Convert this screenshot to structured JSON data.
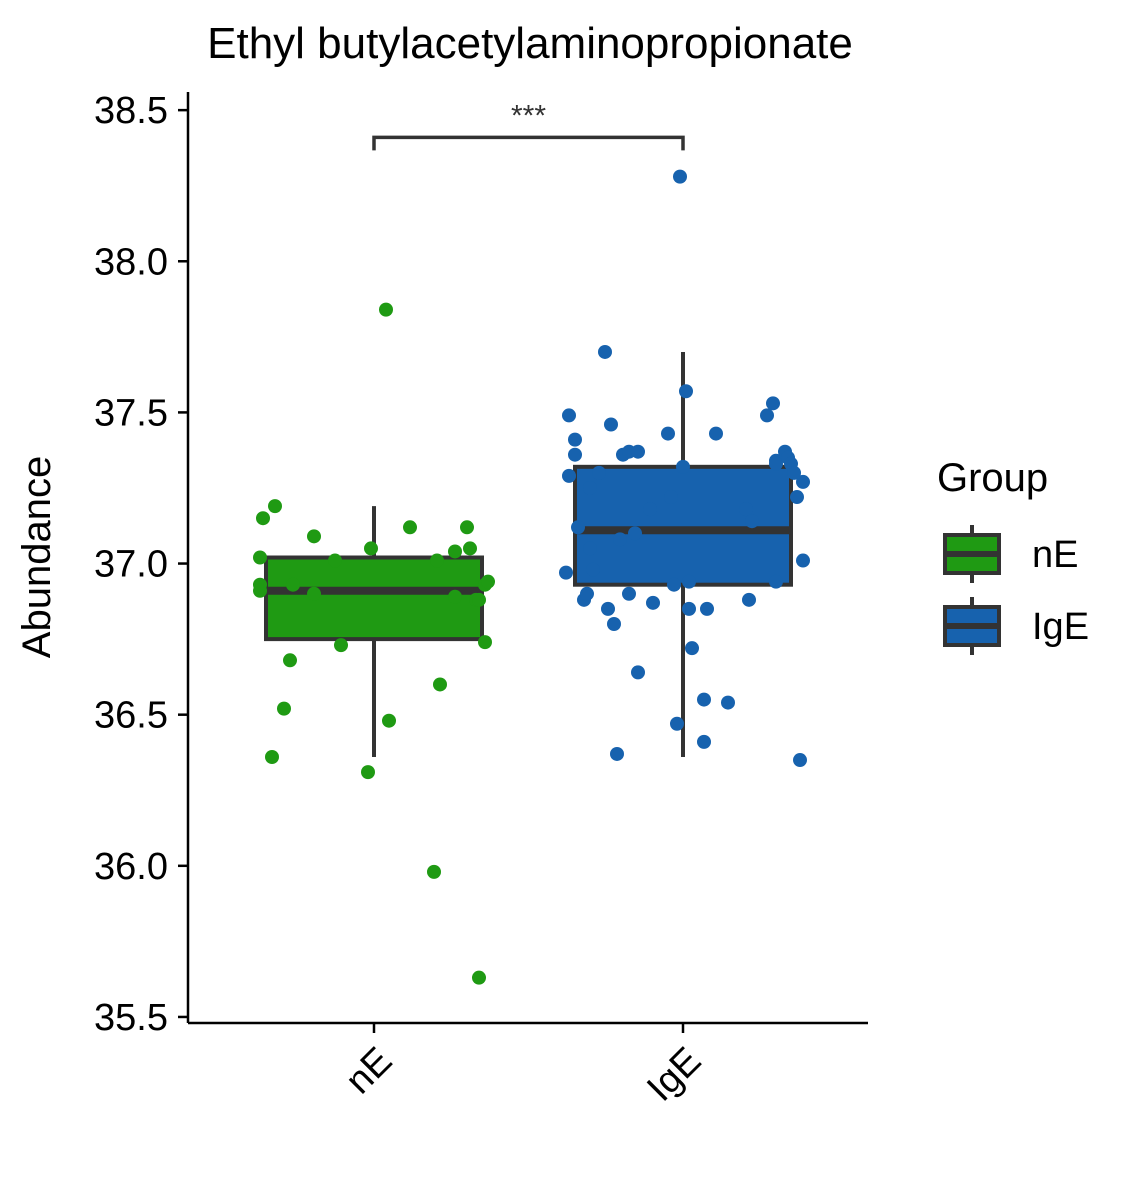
{
  "chart_data": {
    "type": "boxplot",
    "title": "Ethyl butylacetylaminopropionate",
    "xlabel": "",
    "ylabel": "Abundance",
    "ylim": [
      35.48,
      38.56
    ],
    "yticks": [
      "35.5",
      "36.0",
      "36.5",
      "37.0",
      "37.5",
      "38.0",
      "38.5"
    ],
    "categories": [
      "nE",
      "IgE"
    ],
    "legend": {
      "title": "Group",
      "position": "right",
      "entries": [
        "nE",
        "IgE"
      ]
    },
    "significance": {
      "between": [
        "nE",
        "IgE"
      ],
      "label": "***"
    },
    "colors": {
      "nE": "#1f9a13",
      "IgE": "#1762ae",
      "outline": "#333333"
    },
    "groups": [
      {
        "name": "nE",
        "box": {
          "q1": 36.75,
          "median": 36.91,
          "q3": 37.02,
          "whisker_low": 36.36,
          "whisker_high": 37.19
        },
        "points": [
          [
            -0.38,
            36.93
          ],
          [
            -0.38,
            36.91
          ],
          [
            -0.38,
            37.02
          ],
          [
            -0.37,
            37.15
          ],
          [
            -0.34,
            36.36
          ],
          [
            -0.33,
            37.19
          ],
          [
            -0.3,
            36.52
          ],
          [
            -0.28,
            36.68
          ],
          [
            -0.27,
            36.93
          ],
          [
            -0.2,
            36.9
          ],
          [
            -0.2,
            37.09
          ],
          [
            -0.13,
            37.01
          ],
          [
            -0.11,
            36.73
          ],
          [
            -0.02,
            36.31
          ],
          [
            -0.01,
            37.05
          ],
          [
            0.04,
            37.84
          ],
          [
            0.05,
            36.48
          ],
          [
            0.12,
            37.12
          ],
          [
            0.2,
            35.98
          ],
          [
            0.21,
            37.01
          ],
          [
            0.22,
            36.6
          ],
          [
            0.27,
            37.04
          ],
          [
            0.27,
            36.89
          ],
          [
            0.31,
            37.12
          ],
          [
            0.32,
            37.05
          ],
          [
            0.34,
            36.88
          ],
          [
            0.35,
            35.63
          ],
          [
            0.35,
            36.88
          ],
          [
            0.37,
            36.74
          ],
          [
            0.37,
            36.93
          ],
          [
            0.38,
            36.94
          ]
        ]
      },
      {
        "name": "IgE",
        "box": {
          "q1": 36.93,
          "median": 37.11,
          "q3": 37.32,
          "whisker_low": 36.36,
          "whisker_high": 37.7
        },
        "points": [
          [
            -0.39,
            36.97
          ],
          [
            -0.38,
            37.49
          ],
          [
            -0.38,
            37.29
          ],
          [
            -0.36,
            37.41
          ],
          [
            -0.36,
            37.36
          ],
          [
            -0.35,
            37.12
          ],
          [
            -0.33,
            36.88
          ],
          [
            -0.32,
            36.9
          ],
          [
            -0.31,
            37.25
          ],
          [
            -0.31,
            37.05
          ],
          [
            -0.3,
            36.98
          ],
          [
            -0.28,
            37.3
          ],
          [
            -0.26,
            37.7
          ],
          [
            -0.25,
            36.85
          ],
          [
            -0.24,
            37.46
          ],
          [
            -0.23,
            36.8
          ],
          [
            -0.22,
            36.37
          ],
          [
            -0.21,
            37.08
          ],
          [
            -0.2,
            37.36
          ],
          [
            -0.18,
            36.9
          ],
          [
            -0.18,
            37.37
          ],
          [
            -0.16,
            37.1
          ],
          [
            -0.15,
            37.37
          ],
          [
            -0.15,
            36.64
          ],
          [
            -0.11,
            37.18
          ],
          [
            -0.1,
            36.87
          ],
          [
            -0.05,
            37.43
          ],
          [
            -0.04,
            37.22
          ],
          [
            -0.03,
            36.93
          ],
          [
            -0.02,
            36.47
          ],
          [
            -0.01,
            38.28
          ],
          [
            0.0,
            37.32
          ],
          [
            0.01,
            37.57
          ],
          [
            0.02,
            36.85
          ],
          [
            0.02,
            36.94
          ],
          [
            0.03,
            36.72
          ],
          [
            0.07,
            36.55
          ],
          [
            0.07,
            36.41
          ],
          [
            0.08,
            36.85
          ],
          [
            0.11,
            37.43
          ],
          [
            0.15,
            36.54
          ],
          [
            0.22,
            36.88
          ],
          [
            0.21,
            37.18
          ],
          [
            0.23,
            37.14
          ],
          [
            0.28,
            37.49
          ],
          [
            0.3,
            37.53
          ],
          [
            0.31,
            37.34
          ],
          [
            0.31,
            37.33
          ],
          [
            0.31,
            36.94
          ],
          [
            0.34,
            37.37
          ],
          [
            0.35,
            37.35
          ],
          [
            0.36,
            37.33
          ],
          [
            0.37,
            37.3
          ],
          [
            0.38,
            37.22
          ],
          [
            0.39,
            36.35
          ],
          [
            0.4,
            37.01
          ],
          [
            0.4,
            37.27
          ]
        ]
      }
    ]
  }
}
